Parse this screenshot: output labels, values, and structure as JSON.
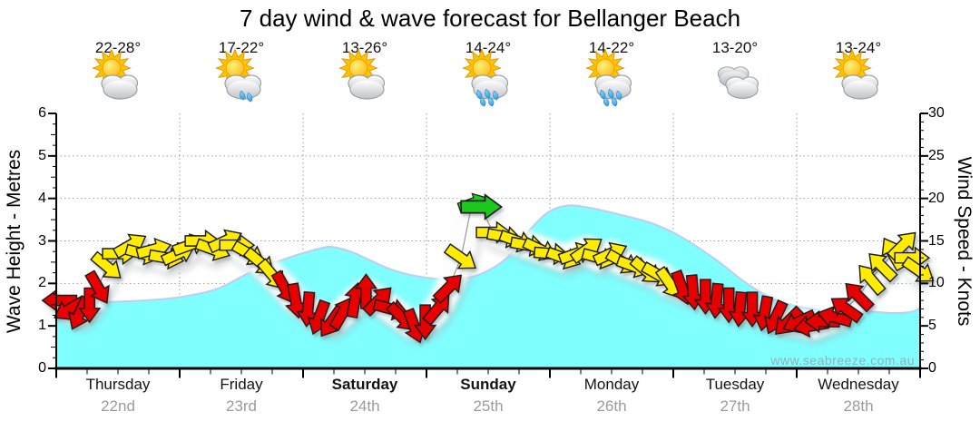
{
  "title": "7 day wind & wave forecast for Bellanger Beach",
  "watermark": "www.seabreeze.com.au",
  "axes": {
    "left_label": "Wave Height - Metres",
    "right_label": "Wind Speed - Knots",
    "left_ticks": [
      0,
      1,
      2,
      3,
      4,
      5,
      6
    ],
    "right_ticks": [
      0,
      5,
      10,
      15,
      20,
      25,
      30
    ]
  },
  "days": [
    {
      "name": "Thursday",
      "date": "22nd",
      "temp": "22-28°",
      "icon": "sun-cloud",
      "bold": false
    },
    {
      "name": "Friday",
      "date": "23rd",
      "temp": "17-22°",
      "icon": "sun-cloud-rain-light",
      "bold": false
    },
    {
      "name": "Saturday",
      "date": "24th",
      "temp": "13-26°",
      "icon": "sun-cloud",
      "bold": true
    },
    {
      "name": "Sunday",
      "date": "25th",
      "temp": "14-24°",
      "icon": "sun-cloud-rain",
      "bold": true
    },
    {
      "name": "Monday",
      "date": "26th",
      "temp": "14-22°",
      "icon": "sun-cloud-rain",
      "bold": false
    },
    {
      "name": "Tuesday",
      "date": "27th",
      "temp": "13-20°",
      "icon": "cloudy",
      "bold": false
    },
    {
      "name": "Wednesday",
      "date": "28th",
      "temp": "13-24°",
      "icon": "sun-cloud",
      "bold": false
    }
  ],
  "chart_data": {
    "type": "area",
    "x_unit": "days, 0 = start of Thursday 22nd, 7 = end of Wednesday 28th",
    "wave_ylim": [
      0,
      6
    ],
    "wind_ylim": [
      0,
      30
    ],
    "grid": "dotted horizontal every 1 m, dotted vertical at each day boundary",
    "wave_height_m": [
      [
        0,
        1.58
      ],
      [
        0.35,
        1.56
      ],
      [
        0.72,
        1.6
      ],
      [
        1.01,
        1.68
      ],
      [
        1.31,
        1.88
      ],
      [
        1.6,
        2.3
      ],
      [
        1.9,
        2.62
      ],
      [
        2.15,
        2.83
      ],
      [
        2.25,
        2.85
      ],
      [
        2.41,
        2.72
      ],
      [
        2.71,
        2.33
      ],
      [
        2.96,
        2.15
      ],
      [
        3.22,
        2.1
      ],
      [
        3.44,
        2.22
      ],
      [
        3.66,
        2.62
      ],
      [
        3.85,
        3.3
      ],
      [
        3.99,
        3.68
      ],
      [
        4.14,
        3.83
      ],
      [
        4.32,
        3.78
      ],
      [
        4.62,
        3.58
      ],
      [
        4.84,
        3.4
      ],
      [
        5.06,
        3.1
      ],
      [
        5.35,
        2.55
      ],
      [
        5.57,
        2.05
      ],
      [
        5.82,
        1.62
      ],
      [
        6.07,
        1.42
      ],
      [
        6.31,
        1.36
      ],
      [
        6.57,
        1.34
      ],
      [
        6.79,
        1.3
      ],
      [
        6.93,
        1.33
      ],
      [
        7,
        1.42
      ]
    ],
    "wind_arrows_note": "[t_days, knots, direction_deg_clockwise_0=pointing_east, color, scale]",
    "wind_arrows": [
      [
        0.03,
        8,
        180,
        "r"
      ],
      [
        0.11,
        7,
        150,
        "r"
      ],
      [
        0.19,
        6.5,
        115,
        "r"
      ],
      [
        0.27,
        7.5,
        90,
        "r"
      ],
      [
        0.34,
        9.5,
        60,
        "r"
      ],
      [
        0.41,
        12,
        40,
        "y"
      ],
      [
        0.51,
        13.5,
        0,
        "y"
      ],
      [
        0.6,
        14.5,
        330,
        "y"
      ],
      [
        0.7,
        13.5,
        15,
        "y"
      ],
      [
        0.79,
        14,
        345,
        "y"
      ],
      [
        0.89,
        13,
        10,
        "y"
      ],
      [
        0.99,
        13.5,
        335,
        "y"
      ],
      [
        1.08,
        14.5,
        340,
        "y"
      ],
      [
        1.18,
        15,
        0,
        "y"
      ],
      [
        1.27,
        14,
        20,
        "y"
      ],
      [
        1.37,
        15,
        335,
        "y"
      ],
      [
        1.46,
        14.5,
        0,
        "y"
      ],
      [
        1.56,
        13.5,
        30,
        "y"
      ],
      [
        1.65,
        12.5,
        40,
        "y"
      ],
      [
        1.75,
        11,
        50,
        "y"
      ],
      [
        1.85,
        9.5,
        60,
        "r"
      ],
      [
        1.94,
        8,
        80,
        "r"
      ],
      [
        2.04,
        7,
        95,
        "r"
      ],
      [
        2.13,
        6,
        110,
        "r"
      ],
      [
        2.23,
        5.5,
        125,
        "r"
      ],
      [
        2.32,
        6.5,
        300,
        "r"
      ],
      [
        2.42,
        8,
        280,
        "r"
      ],
      [
        2.51,
        9,
        270,
        "r"
      ],
      [
        2.61,
        8,
        315,
        "r"
      ],
      [
        2.71,
        7,
        15,
        "r"
      ],
      [
        2.8,
        6,
        45,
        "r"
      ],
      [
        2.9,
        5,
        70,
        "r"
      ],
      [
        2.99,
        5.5,
        90,
        "r"
      ],
      [
        3.09,
        7,
        310,
        "r"
      ],
      [
        3.18,
        9.5,
        315,
        "r"
      ],
      [
        3.28,
        13,
        35,
        "y"
      ],
      [
        3.37,
        19.5,
        340,
        "g",
        0.85
      ],
      [
        3.44,
        19,
        0,
        "g",
        1.2
      ],
      [
        3.54,
        16,
        0,
        "y"
      ],
      [
        3.63,
        15.5,
        10,
        "y"
      ],
      [
        3.73,
        15,
        20,
        "y"
      ],
      [
        3.82,
        14.5,
        10,
        "y"
      ],
      [
        3.92,
        14,
        25,
        "y"
      ],
      [
        4.01,
        13.5,
        5,
        "y"
      ],
      [
        4.11,
        13,
        20,
        "y"
      ],
      [
        4.21,
        13.5,
        340,
        "y"
      ],
      [
        4.3,
        14,
        325,
        "y"
      ],
      [
        4.4,
        13,
        15,
        "y"
      ],
      [
        4.49,
        13.5,
        335,
        "y"
      ],
      [
        4.59,
        12.5,
        30,
        "y"
      ],
      [
        4.68,
        12,
        20,
        "y"
      ],
      [
        4.78,
        11.5,
        40,
        "y"
      ],
      [
        4.88,
        11,
        30,
        "y"
      ],
      [
        4.97,
        10,
        55,
        "y"
      ],
      [
        5.07,
        9.5,
        70,
        "r"
      ],
      [
        5.16,
        9,
        85,
        "r"
      ],
      [
        5.26,
        8.5,
        90,
        "r"
      ],
      [
        5.35,
        8,
        95,
        "r"
      ],
      [
        5.45,
        7.5,
        90,
        "r"
      ],
      [
        5.54,
        7,
        95,
        "r"
      ],
      [
        5.64,
        7,
        90,
        "r"
      ],
      [
        5.74,
        6.5,
        100,
        "r"
      ],
      [
        5.83,
        6,
        115,
        "r"
      ],
      [
        5.93,
        5.5,
        135,
        "r"
      ],
      [
        6.02,
        5.5,
        155,
        "r"
      ],
      [
        6.12,
        5,
        170,
        "r"
      ],
      [
        6.21,
        5.5,
        180,
        "r"
      ],
      [
        6.31,
        6,
        195,
        "r"
      ],
      [
        6.4,
        7,
        215,
        "r"
      ],
      [
        6.5,
        8.5,
        225,
        "r"
      ],
      [
        6.6,
        10.5,
        230,
        "y"
      ],
      [
        6.69,
        12,
        225,
        "y"
      ],
      [
        6.78,
        13.5,
        240,
        "y"
      ],
      [
        6.86,
        14.5,
        315,
        "y"
      ],
      [
        6.93,
        13,
        0,
        "y"
      ],
      [
        6.99,
        11.5,
        35,
        "y"
      ]
    ],
    "colors": {
      "wave_fill": "#80FFFF",
      "wave_edge": "#BCD0F0",
      "arrow_yellow": "#FFEC00",
      "arrow_red": "#E60000",
      "arrow_green": "#1EC81E",
      "arrow_outline": "#1a1a1a",
      "grid": "#9c9c9c",
      "axis": "#000000"
    }
  }
}
